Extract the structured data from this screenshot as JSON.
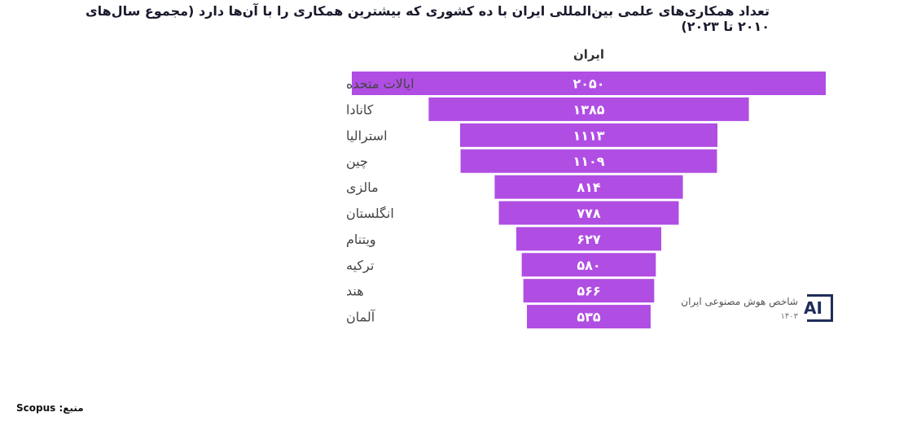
{
  "chart_data": {
    "type": "bar",
    "subtype": "funnel",
    "title": "تعداد همکاری‌های علمی بین‌المللی ایران با ده کشوری که بیشترین همکاری را با آن‌ها دارد (مجموع سال‌های ۲۰۱۰ تا ۲۰۲۳)",
    "series_header": "ایران",
    "categories": [
      "ایالات متحده",
      "کانادا",
      "استرالیا",
      "چین",
      "مالزی",
      "انگلستان",
      "ویتنام",
      "ترکیه",
      "هند",
      "آلمان"
    ],
    "values": [
      2050,
      1385,
      1113,
      1109,
      814,
      778,
      627,
      580,
      566,
      535
    ],
    "value_labels": [
      "۲۰۵۰",
      "۱۳۸۵",
      "۱۱۱۳",
      "۱۱۰۹",
      "۸۱۴",
      "۷۷۸",
      "۶۲۷",
      "۵۸۰",
      "۵۶۶",
      "۵۳۵"
    ],
    "bar_color": "#b04de3",
    "grid": false
  },
  "source": "منبع: Scopus",
  "logo": {
    "text": "شاخص هوش مصنوعی ایران",
    "year": "۱۴۰۳",
    "mark": "AI"
  }
}
